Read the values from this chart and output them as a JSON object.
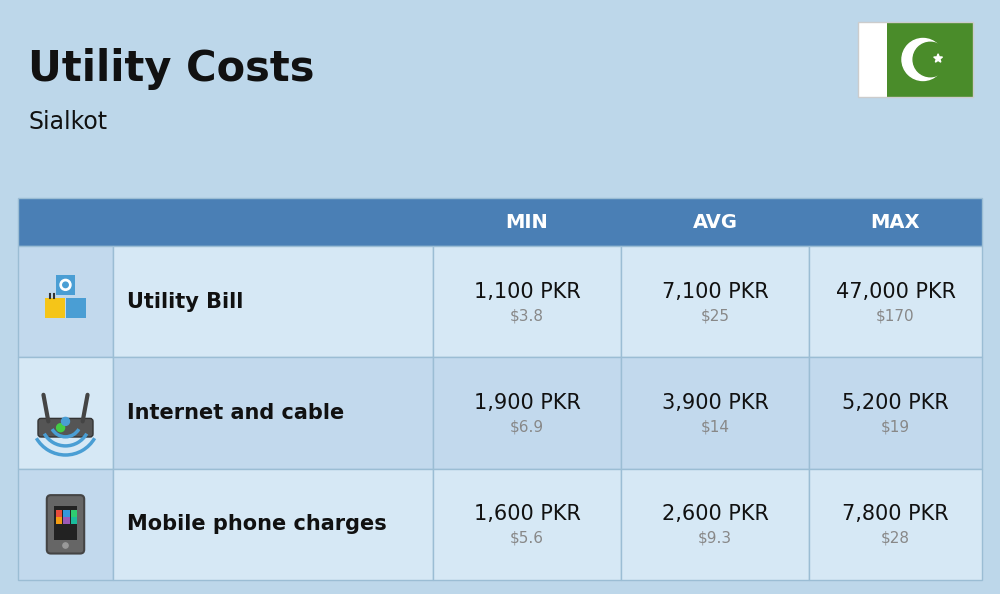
{
  "title": "Utility Costs",
  "subtitle": "Sialkot",
  "background_color": "#bdd7ea",
  "header_color": "#4a7fb5",
  "header_text_color": "#ffffff",
  "row_color_light": "#d6e8f5",
  "row_color_medium": "#c2d9ed",
  "row_border_color": "#9bbdd4",
  "headers": [
    "MIN",
    "AVG",
    "MAX"
  ],
  "rows": [
    {
      "label": "Utility Bill",
      "min_pkr": "1,100 PKR",
      "min_usd": "$3.8",
      "avg_pkr": "7,100 PKR",
      "avg_usd": "$25",
      "max_pkr": "47,000 PKR",
      "max_usd": "$170",
      "icon": "utility"
    },
    {
      "label": "Internet and cable",
      "min_pkr": "1,900 PKR",
      "min_usd": "$6.9",
      "avg_pkr": "3,900 PKR",
      "avg_usd": "$14",
      "max_pkr": "5,200 PKR",
      "max_usd": "$19",
      "icon": "internet"
    },
    {
      "label": "Mobile phone charges",
      "min_pkr": "1,600 PKR",
      "min_usd": "$5.6",
      "avg_pkr": "2,600 PKR",
      "avg_usd": "$9.3",
      "max_pkr": "7,800 PKR",
      "max_usd": "$28",
      "icon": "mobile"
    }
  ],
  "pkr_fontsize": 15,
  "usd_fontsize": 11,
  "label_fontsize": 15,
  "header_fontsize": 14,
  "title_fontsize": 30,
  "subtitle_fontsize": 17
}
